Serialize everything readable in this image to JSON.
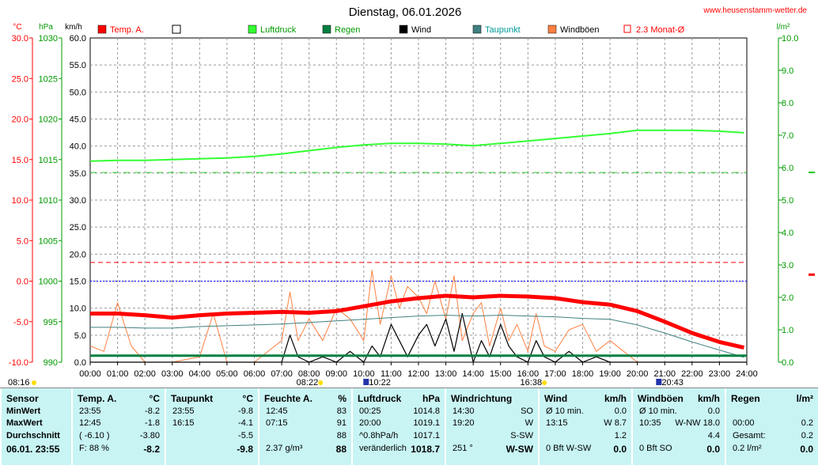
{
  "title": "Dienstag, 06.01.2026",
  "website": "www.heusenstamm-wetter.de",
  "axes": {
    "temp_unit": "°C",
    "pressure_unit": "hPa",
    "wind_unit": "km/h",
    "rain_unit": "l/m²",
    "temp_ticks": [
      "30.0",
      "25.0",
      "20.0",
      "15.0",
      "10.0",
      "5.0",
      "0.0",
      "-5.0",
      "-10.0"
    ],
    "pressure_ticks": [
      "1030",
      "1025",
      "1020",
      "1015",
      "1010",
      "1005",
      "1000",
      "995",
      "990"
    ],
    "wind_ticks": [
      "60.0",
      "55.0",
      "50.0",
      "45.0",
      "40.0",
      "35.0",
      "30.0",
      "25.0",
      "20.0",
      "15.0",
      "10.0",
      "5.0",
      "0.0"
    ],
    "rain_ticks": [
      "10.0",
      "9.0",
      "8.0",
      "7.0",
      "6.0",
      "5.0",
      "4.0",
      "3.0",
      "2.0",
      "1.0",
      "0.0"
    ],
    "time_ticks": [
      "00:00",
      "01:00",
      "02:00",
      "03:00",
      "04:00",
      "05:00",
      "06:00",
      "07:00",
      "08:00",
      "09:00",
      "10:00",
      "11:00",
      "12:00",
      "13:00",
      "14:00",
      "15:00",
      "16:00",
      "17:00",
      "18:00",
      "19:00",
      "20:00",
      "21:00",
      "22:00",
      "23:00",
      "24:00"
    ]
  },
  "legend": [
    {
      "label": "Temp. A.",
      "color": "#ff0000",
      "style": "fill"
    },
    {
      "label": "",
      "color": "#ffffff",
      "style": "box"
    },
    {
      "label": "Luftdruck",
      "color": "#33ff33",
      "style": "fill"
    },
    {
      "label": "Regen",
      "color": "#008040",
      "style": "fill"
    },
    {
      "label": "Wind",
      "color": "#000000",
      "style": "fill"
    },
    {
      "label": "Taupunkt",
      "color": "#408080",
      "style": "fill"
    },
    {
      "label": "Windböen",
      "color": "#ff8040",
      "style": "fill"
    },
    {
      "label": "2.3 Monat-Ø",
      "color": "#ff0000",
      "style": "open"
    }
  ],
  "sun": {
    "sunrise": "08:22",
    "sunset": "16:38",
    "dawn": "08:16",
    "moonrise": "10:22",
    "moonset": "20:43"
  },
  "chart_data": {
    "type": "line",
    "x_unit": "hour",
    "xlim": [
      0,
      24
    ],
    "series": [
      {
        "name": "Temp. A.",
        "color": "#ff0000",
        "axis": "°C",
        "x": [
          0,
          1,
          2,
          3,
          4,
          5,
          6,
          7,
          8,
          9,
          10,
          11,
          12,
          13,
          14,
          15,
          16,
          17,
          18,
          19,
          20,
          21,
          22,
          23,
          23.9
        ],
        "y": [
          -4.0,
          -4.0,
          -4.2,
          -4.5,
          -4.2,
          -4.0,
          -3.9,
          -3.8,
          -3.9,
          -3.7,
          -3.1,
          -2.5,
          -2.1,
          -1.8,
          -2.0,
          -1.8,
          -1.9,
          -2.1,
          -2.6,
          -2.9,
          -3.7,
          -5.0,
          -6.4,
          -7.5,
          -8.2
        ]
      },
      {
        "name": "Taupunkt",
        "color": "#408080",
        "axis": "°C",
        "x": [
          0,
          1,
          2,
          3,
          4,
          5,
          6,
          7,
          8,
          9,
          10,
          11,
          12,
          13,
          14,
          15,
          16,
          17,
          18,
          19,
          20,
          21,
          22,
          23,
          23.9
        ],
        "y": [
          -5.7,
          -5.7,
          -5.8,
          -5.8,
          -5.6,
          -5.5,
          -5.4,
          -5.3,
          -5.1,
          -4.9,
          -4.7,
          -4.5,
          -4.3,
          -4.2,
          -4.3,
          -4.2,
          -4.3,
          -4.4,
          -4.6,
          -4.7,
          -5.4,
          -6.4,
          -7.5,
          -8.5,
          -9.4
        ]
      },
      {
        "name": "Luftdruck",
        "color": "#33ff33",
        "axis": "hPa",
        "x": [
          0,
          1,
          2,
          3,
          4,
          5,
          6,
          7,
          8,
          9,
          10,
          11,
          12,
          13,
          14,
          15,
          16,
          17,
          18,
          19,
          20,
          21,
          22,
          23,
          23.9
        ],
        "y": [
          1014.8,
          1014.9,
          1014.9,
          1015.0,
          1015.1,
          1015.2,
          1015.4,
          1015.7,
          1016.1,
          1016.5,
          1016.8,
          1017.0,
          1017.0,
          1016.9,
          1016.7,
          1017.0,
          1017.3,
          1017.6,
          1017.9,
          1018.2,
          1018.6,
          1018.6,
          1018.6,
          1018.5,
          1018.3
        ]
      },
      {
        "name": "Wind",
        "color": "#000000",
        "axis": "km/h",
        "x": [
          0,
          1,
          2,
          3,
          4,
          5,
          6,
          6.5,
          7,
          7.3,
          7.6,
          8,
          8.5,
          9,
          9.5,
          10,
          10.3,
          10.6,
          11,
          11.3,
          11.6,
          12,
          12.3,
          12.6,
          13,
          13.3,
          13.6,
          14,
          14.3,
          14.6,
          15,
          15.3,
          15.6,
          16,
          16.3,
          16.6,
          17,
          17.5,
          18,
          18.5,
          19,
          20,
          21,
          22,
          23,
          24
        ],
        "y": [
          0,
          0,
          0,
          0,
          0,
          0,
          0,
          0,
          0,
          5,
          1,
          0,
          1,
          0,
          2,
          0,
          3,
          1,
          7,
          4,
          1,
          5,
          7,
          3,
          8,
          2,
          9,
          0,
          4,
          1,
          7,
          3,
          1,
          0,
          4,
          1,
          0,
          2,
          0,
          1,
          0,
          0,
          0,
          0,
          0,
          0
        ]
      },
      {
        "name": "Windböen",
        "color": "#ff8040",
        "axis": "km/h",
        "x": [
          0,
          0.5,
          1,
          1.5,
          2,
          3,
          4,
          4.5,
          5,
          6,
          7,
          7.3,
          7.6,
          8,
          8.5,
          9,
          9.5,
          10,
          10.3,
          10.6,
          11,
          11.3,
          11.6,
          12,
          12.3,
          12.6,
          13,
          13.3,
          13.6,
          14,
          14.3,
          14.6,
          15,
          15.3,
          15.6,
          16,
          16.3,
          16.6,
          17,
          17.5,
          18,
          18.5,
          19,
          20,
          21,
          22,
          23,
          24
        ],
        "y": [
          3,
          2,
          11,
          3,
          0,
          0,
          1,
          9,
          0,
          0,
          4,
          13,
          4,
          8,
          4,
          10,
          8,
          4,
          17,
          7,
          16,
          10,
          14,
          12,
          9,
          15,
          8,
          16,
          4,
          9,
          11,
          3,
          10,
          4,
          7,
          2,
          9,
          3,
          2,
          6,
          7,
          2,
          4,
          0,
          0,
          0,
          0,
          0
        ]
      },
      {
        "name": "Regen",
        "color": "#008040",
        "axis": "l/m²",
        "x": [
          0,
          24
        ],
        "y": [
          0.2,
          0.2
        ]
      },
      {
        "name": "2.3 Monat-Ø",
        "color": "#ff0000",
        "axis": "°C",
        "x": [
          0,
          24
        ],
        "y": [
          2.3,
          2.3
        ]
      }
    ]
  },
  "stats": {
    "sensor": {
      "h": "Sensor",
      "min": "MinWert",
      "max": "MaxWert",
      "avg": "Durchschnitt",
      "now": "06.01. 23:55"
    },
    "temp": {
      "h": "Temp. A.",
      "u": "°C",
      "min_t": "23:55",
      "min_v": "-8.2",
      "max_t": "12:45",
      "max_v": "-1.8",
      "avg_t": "( -6.10 )",
      "avg_v": "-3.80",
      "now_t": "F: 88 %",
      "now_v": "-8.2"
    },
    "dew": {
      "h": "Taupunkt",
      "u": "°C",
      "min_t": "23:55",
      "min_v": "-9.8",
      "max_t": "16:15",
      "max_v": "-4.1",
      "avg_v": "-5.5",
      "now_v": "-9.8"
    },
    "hum": {
      "h": "Feuchte A.",
      "u": "%",
      "min_t": "12:45",
      "min_v": "83",
      "max_t": "07:15",
      "max_v": "91",
      "avg_v": "88",
      "now_t": "2.37 g/m³",
      "now_v": "88"
    },
    "press": {
      "h": "Luftdruck",
      "u": "hPa",
      "min_t": "00:25",
      "min_v": "1014.8",
      "max_t": "20:00",
      "max_v": "1019.1",
      "avg_t": "^0.8hPa/h",
      "avg_v": "1017.1",
      "now_t": "veränderlich",
      "now_v": "1018.7"
    },
    "dir": {
      "h": "Windrichtung",
      "min_t": "14:30",
      "min_v": "SO",
      "max_t": "19:20",
      "max_v": "W",
      "avg_v": "S-SW",
      "now_t": "251 °",
      "now_v": "W-SW"
    },
    "wind": {
      "h": "Wind",
      "u": "km/h",
      "min_t": "Ø 10 min.",
      "min_v": "0.0",
      "max_t": "13:15",
      "max_v": "W 8.7",
      "avg_v": "1.2",
      "now_t": "0 Bft W-SW",
      "now_v": "0.0"
    },
    "gust": {
      "h": "Windböen",
      "u": "km/h",
      "min_t": "Ø 10 min.",
      "min_v": "0.0",
      "max_t": "10:35",
      "max_v": "W-NW 18.0",
      "avg_v": "4.4",
      "now_t": "0 Bft SO",
      "now_v": "0.0"
    },
    "rain": {
      "h": "Regen",
      "u": "l/m²",
      "max_t": "00:00",
      "max_v": "0.2",
      "avg_t": "Gesamt:",
      "avg_v": "0.2",
      "now_t": "0.2 l/m²",
      "now_v": "0.0"
    }
  }
}
